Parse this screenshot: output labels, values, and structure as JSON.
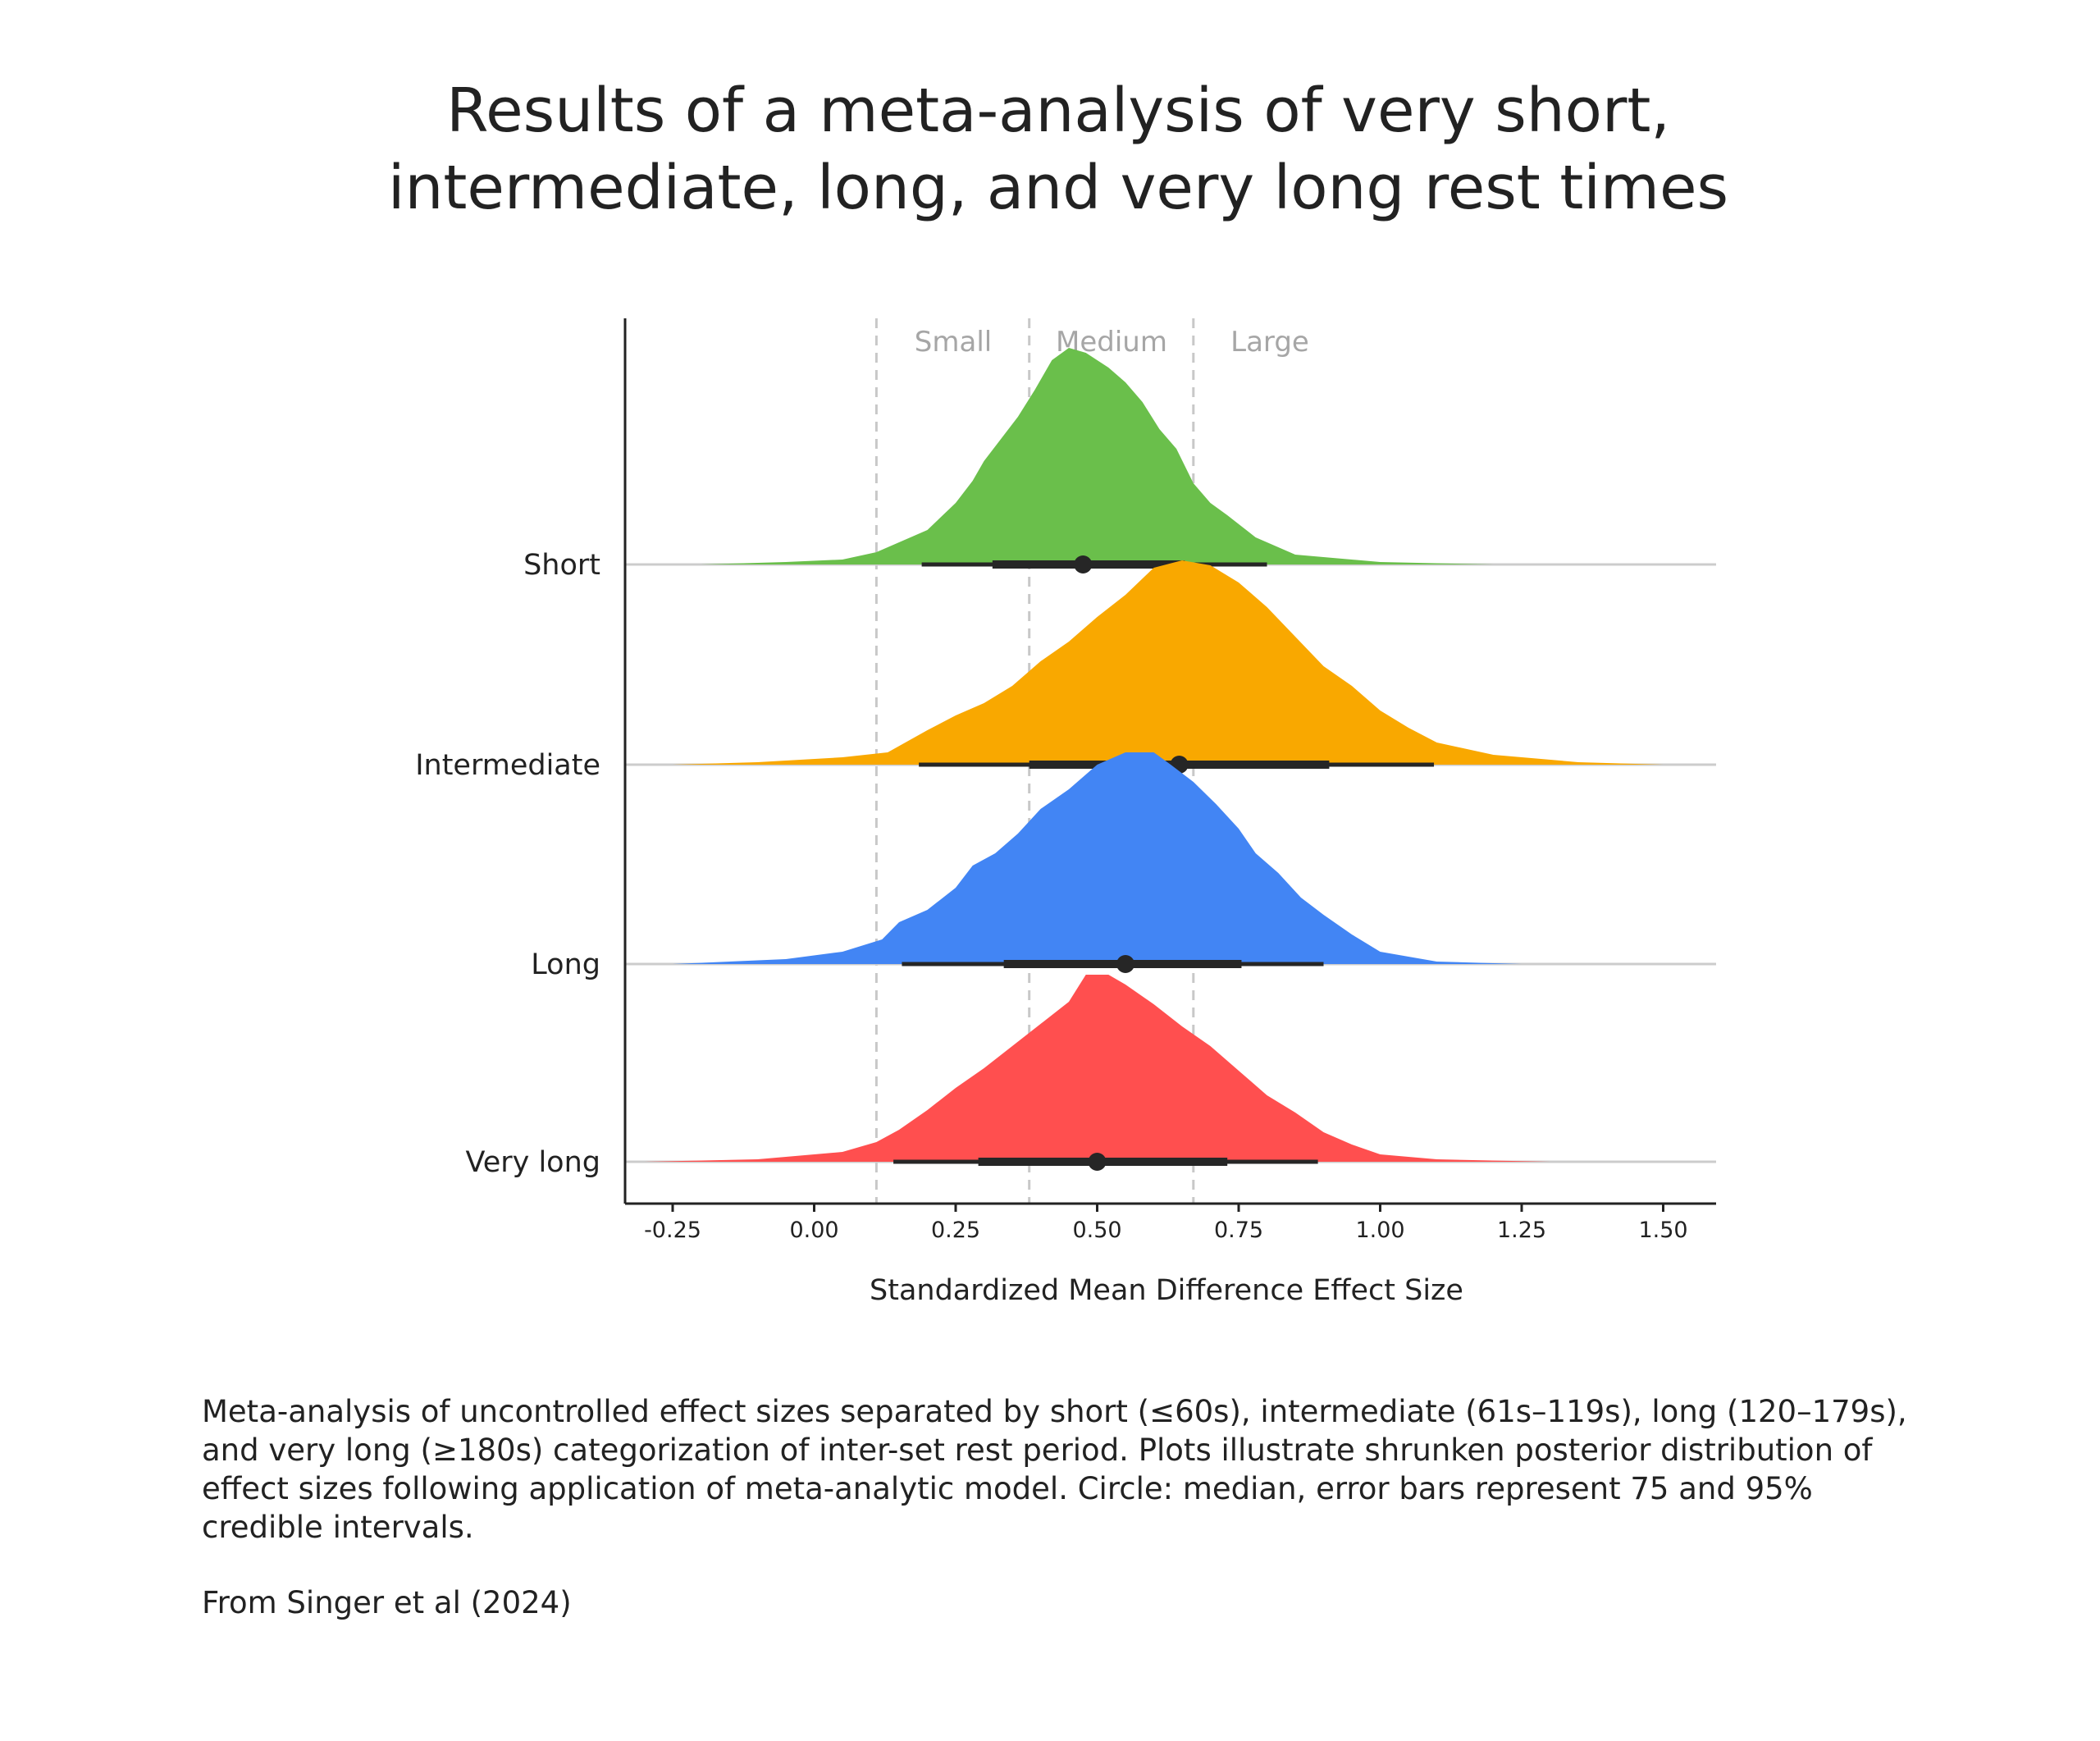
{
  "title": {
    "line1": "Results of a meta-analysis of very short,",
    "line2": "intermediate, long, and very long rest times"
  },
  "chart_data": {
    "type": "ridgeline",
    "xlabel": "Standardized Mean Difference Effect Size",
    "xlim": [
      -0.34,
      1.58
    ],
    "xticks": [
      -0.25,
      0.0,
      0.25,
      0.5,
      0.75,
      1.0,
      1.25,
      1.5
    ],
    "xtick_labels": [
      "-0.25",
      "0.00",
      "0.25",
      "0.50",
      "0.75",
      "1.00",
      "1.25",
      "1.50"
    ],
    "reference_lines": [
      {
        "x": 0.11,
        "label": "Small"
      },
      {
        "x": 0.38,
        "label": "Medium"
      },
      {
        "x": 0.67,
        "label": "Large"
      }
    ],
    "grid": false,
    "series": [
      {
        "name": "Short",
        "color": "#6abf4b",
        "median": 0.475,
        "ci75": [
          0.315,
          0.655
        ],
        "ci95": [
          0.19,
          0.8
        ],
        "density": [
          [
            -0.2,
            0
          ],
          [
            -0.05,
            0.01
          ],
          [
            0.05,
            0.02
          ],
          [
            0.11,
            0.05
          ],
          [
            0.2,
            0.14
          ],
          [
            0.25,
            0.25
          ],
          [
            0.28,
            0.34
          ],
          [
            0.3,
            0.42
          ],
          [
            0.33,
            0.51
          ],
          [
            0.36,
            0.6
          ],
          [
            0.39,
            0.71
          ],
          [
            0.42,
            0.83
          ],
          [
            0.45,
            0.88
          ],
          [
            0.48,
            0.86
          ],
          [
            0.52,
            0.8
          ],
          [
            0.55,
            0.74
          ],
          [
            0.58,
            0.66
          ],
          [
            0.61,
            0.55
          ],
          [
            0.64,
            0.47
          ],
          [
            0.67,
            0.33
          ],
          [
            0.7,
            0.25
          ],
          [
            0.73,
            0.2
          ],
          [
            0.78,
            0.11
          ],
          [
            0.85,
            0.04
          ],
          [
            1.0,
            0.01
          ],
          [
            1.2,
            0
          ]
        ]
      },
      {
        "name": "Intermediate",
        "color": "#f9a800",
        "median": 0.645,
        "ci75": [
          0.38,
          0.91
        ],
        "ci95": [
          0.185,
          1.095
        ],
        "density": [
          [
            -0.25,
            0
          ],
          [
            -0.1,
            0.01
          ],
          [
            0.05,
            0.03
          ],
          [
            0.13,
            0.05
          ],
          [
            0.2,
            0.14
          ],
          [
            0.25,
            0.2
          ],
          [
            0.3,
            0.25
          ],
          [
            0.35,
            0.32
          ],
          [
            0.4,
            0.42
          ],
          [
            0.45,
            0.5
          ],
          [
            0.5,
            0.6
          ],
          [
            0.55,
            0.69
          ],
          [
            0.6,
            0.8
          ],
          [
            0.65,
            0.83
          ],
          [
            0.7,
            0.81
          ],
          [
            0.75,
            0.74
          ],
          [
            0.8,
            0.64
          ],
          [
            0.85,
            0.52
          ],
          [
            0.9,
            0.4
          ],
          [
            0.95,
            0.32
          ],
          [
            1.0,
            0.22
          ],
          [
            1.05,
            0.15
          ],
          [
            1.1,
            0.09
          ],
          [
            1.2,
            0.04
          ],
          [
            1.35,
            0.01
          ],
          [
            1.5,
            0
          ]
        ]
      },
      {
        "name": "Long",
        "color": "#4285f4",
        "median": 0.55,
        "ci75": [
          0.335,
          0.755
        ],
        "ci95": [
          0.155,
          0.9
        ],
        "density": [
          [
            -0.25,
            0
          ],
          [
            -0.05,
            0.02
          ],
          [
            0.05,
            0.05
          ],
          [
            0.12,
            0.1
          ],
          [
            0.15,
            0.17
          ],
          [
            0.2,
            0.22
          ],
          [
            0.25,
            0.31
          ],
          [
            0.28,
            0.4
          ],
          [
            0.32,
            0.45
          ],
          [
            0.36,
            0.53
          ],
          [
            0.4,
            0.63
          ],
          [
            0.45,
            0.71
          ],
          [
            0.5,
            0.81
          ],
          [
            0.55,
            0.86
          ],
          [
            0.6,
            0.86
          ],
          [
            0.63,
            0.81
          ],
          [
            0.67,
            0.74
          ],
          [
            0.71,
            0.65
          ],
          [
            0.75,
            0.55
          ],
          [
            0.78,
            0.45
          ],
          [
            0.82,
            0.37
          ],
          [
            0.86,
            0.27
          ],
          [
            0.9,
            0.2
          ],
          [
            0.95,
            0.12
          ],
          [
            1.0,
            0.05
          ],
          [
            1.1,
            0.01
          ],
          [
            1.25,
            0
          ]
        ]
      },
      {
        "name": "Very long",
        "color": "#ff4f4f",
        "median": 0.5,
        "ci75": [
          0.29,
          0.73
        ],
        "ci95": [
          0.14,
          0.89
        ],
        "density": [
          [
            -0.3,
            0
          ],
          [
            -0.1,
            0.01
          ],
          [
            0.05,
            0.04
          ],
          [
            0.11,
            0.08
          ],
          [
            0.15,
            0.13
          ],
          [
            0.2,
            0.21
          ],
          [
            0.25,
            0.3
          ],
          [
            0.3,
            0.38
          ],
          [
            0.35,
            0.47
          ],
          [
            0.4,
            0.56
          ],
          [
            0.45,
            0.65
          ],
          [
            0.48,
            0.76
          ],
          [
            0.52,
            0.76
          ],
          [
            0.55,
            0.72
          ],
          [
            0.6,
            0.64
          ],
          [
            0.65,
            0.55
          ],
          [
            0.7,
            0.47
          ],
          [
            0.75,
            0.37
          ],
          [
            0.8,
            0.27
          ],
          [
            0.85,
            0.2
          ],
          [
            0.9,
            0.12
          ],
          [
            0.95,
            0.07
          ],
          [
            1.0,
            0.03
          ],
          [
            1.1,
            0.01
          ],
          [
            1.3,
            0
          ]
        ]
      }
    ]
  },
  "caption": "Meta-analysis of uncontrolled effect sizes separated by short (≤60s), intermediate (61s–119s), long (120–179s), and very long (≥180s) categorization of inter-set rest period. Plots illustrate shrunken posterior distribution of effect sizes following application of meta-analytic model. Circle: median, error bars represent 75 and 95% credible intervals.",
  "source": "From Singer et al (2024)"
}
